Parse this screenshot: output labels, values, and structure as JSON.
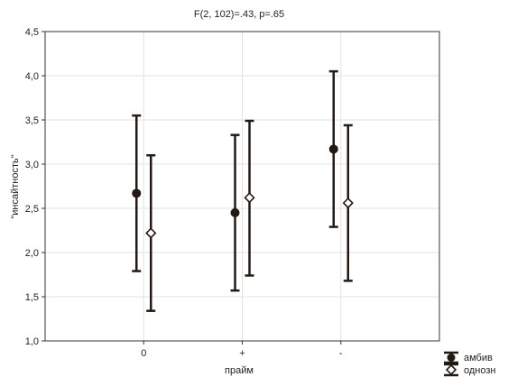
{
  "chart_data": {
    "type": "scatter",
    "title": "F(2, 102)=.43, p=.65",
    "xlabel": "прайм",
    "ylabel": "\"инсайтность\"",
    "categories": [
      "0",
      "+",
      "-"
    ],
    "ylim": [
      1.0,
      4.5
    ],
    "yticks": [
      "1,0",
      "1,5",
      "2,0",
      "2,5",
      "3,0",
      "3,5",
      "4,0",
      "4,5"
    ],
    "grid": true,
    "legend_position": "bottom-right",
    "series": [
      {
        "name": "амбив",
        "marker": "filled-circle",
        "color": "#231a14",
        "values": [
          2.67,
          2.45,
          3.17
        ],
        "lower": [
          1.79,
          1.57,
          2.29
        ],
        "upper": [
          3.55,
          3.33,
          4.05
        ]
      },
      {
        "name": "однозн",
        "marker": "open-diamond",
        "color": "#231a14",
        "values": [
          2.22,
          2.62,
          2.56
        ],
        "lower": [
          1.34,
          1.74,
          1.68
        ],
        "upper": [
          3.1,
          3.49,
          3.44
        ]
      }
    ]
  }
}
